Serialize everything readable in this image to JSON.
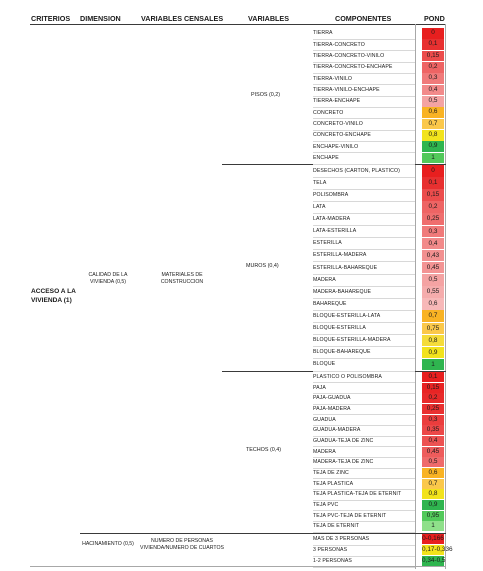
{
  "headers": {
    "criterios": "CRITERIOS",
    "dimension": "DIMENSION",
    "variables_censales": "VARIABLES CENSALES",
    "variables": "VARIABLES",
    "componentes": "COMPONENTES",
    "pond": "POND"
  },
  "criterio": "ACCESO A LA VIVIENDA (1)",
  "dimensiones": {
    "calidad": "CALIDAD DE LA VIVIENDA (0,5)",
    "hacinamiento": "HACINAMIENTO (0,5)"
  },
  "variables_censales": {
    "materiales": "MATERIALES DE CONSTRUCCION",
    "personas": "NUMERO DE PERSONAS VIVIENDA/NUMERO DE CUARTOS"
  },
  "variables": {
    "pisos": "PISOS (0,2)",
    "muros": "MUROS (0,4)",
    "techos": "TECHOS (0,4)"
  },
  "colors": {
    "red": "#e81f1f",
    "salmon": "#ef6b6b",
    "pink": "#f4a3a3",
    "orange": "#f9b324",
    "yellow": "#f2e31c",
    "green": "#2fb54f",
    "light_green": "#8fe08a"
  },
  "rows": [
    {
      "comp": "TIERRA",
      "pond": "0",
      "color": "#e81f1f"
    },
    {
      "comp": "TIERRA-CONCRETO",
      "pond": "0,1",
      "color": "#e83030"
    },
    {
      "comp": "TIERRA-CONCRETO-VINILO",
      "pond": "0,15",
      "color": "#ec4c4c"
    },
    {
      "comp": "TIERRA-CONCRETO-ENCHAPE",
      "pond": "0,2",
      "color": "#ee6464"
    },
    {
      "comp": "TIERRA-VINILO",
      "pond": "0,3",
      "color": "#f07a7a"
    },
    {
      "comp": "TIERRA-VINILO-ENCHAPE",
      "pond": "0,4",
      "color": "#f28a8a"
    },
    {
      "comp": "TIERRA-ENCHAPE",
      "pond": "0,5",
      "color": "#f4a3a3"
    },
    {
      "comp": "CONCRETO",
      "pond": "0,6",
      "color": "#f9b324"
    },
    {
      "comp": "CONCRETO-VINILO",
      "pond": "0,7",
      "color": "#fbc84a"
    },
    {
      "comp": "CONCRETO-ENCHAPE",
      "pond": "0,8",
      "color": "#f2e31c"
    },
    {
      "comp": "ENCHAPE-VINILO",
      "pond": "0,9",
      "color": "#2fb54f"
    },
    {
      "comp": "ENCHAPE",
      "pond": "1",
      "color": "#52c95a"
    },
    {
      "comp": "DESECHOS (CARTON, PLASTICO)",
      "pond": "0",
      "color": "#e81f1f"
    },
    {
      "comp": "TELA",
      "pond": "0,1",
      "color": "#e83030"
    },
    {
      "comp": "POLISOMBRA",
      "pond": "0,15",
      "color": "#ec4c4c"
    },
    {
      "comp": "LATA",
      "pond": "0,2",
      "color": "#ee6464"
    },
    {
      "comp": "LATA-MADERA",
      "pond": "0,25",
      "color": "#ef6e6e"
    },
    {
      "comp": "LATA-ESTERILLA",
      "pond": "0,3",
      "color": "#f07a7a"
    },
    {
      "comp": "ESTERILLA",
      "pond": "0,4",
      "color": "#f28a8a"
    },
    {
      "comp": "ESTERILLA-MADERA",
      "pond": "0,43",
      "color": "#f29090"
    },
    {
      "comp": "ESTERILLA-BAHAREQUE",
      "pond": "0,45",
      "color": "#f39494"
    },
    {
      "comp": "MADERA",
      "pond": "0,5",
      "color": "#f4a3a3"
    },
    {
      "comp": "MADERA-BAHAREQUE",
      "pond": "0,55",
      "color": "#f5acac"
    },
    {
      "comp": "BAHAREQUE",
      "pond": "0,6",
      "color": "#f7b8b8"
    },
    {
      "comp": "BLOQUE-ESTERILLA-LATA",
      "pond": "0,7",
      "color": "#f9b324"
    },
    {
      "comp": "BLOQUE-ESTERILLA",
      "pond": "0,75",
      "color": "#fbc84a"
    },
    {
      "comp": "BLOQUE-ESTERILLA-MADERA",
      "pond": "0,8",
      "color": "#f5dc3a"
    },
    {
      "comp": "BLOQUE-BAHAREQUE",
      "pond": "0,9",
      "color": "#f2e31c"
    },
    {
      "comp": "BLOQUE",
      "pond": "1",
      "color": "#2fb54f"
    },
    {
      "comp": "PLASTICO O POLISOMBRA",
      "pond": "0,1",
      "color": "#e81f1f"
    },
    {
      "comp": "PAJA",
      "pond": "0,15",
      "color": "#e82424"
    },
    {
      "comp": "PAJA-GUADUA",
      "pond": "0,2",
      "color": "#e82a2a"
    },
    {
      "comp": "PAJA-MADERA",
      "pond": "0,25",
      "color": "#e93030"
    },
    {
      "comp": "GUADUA",
      "pond": "0,3",
      "color": "#eb3d3d"
    },
    {
      "comp": "GUADUA-MADERA",
      "pond": "0,35",
      "color": "#ec4848"
    },
    {
      "comp": "GUADUA-TEJA DE ZINC",
      "pond": "0,4",
      "color": "#ed5252"
    },
    {
      "comp": "MADERA",
      "pond": "0,45",
      "color": "#ee5c5c"
    },
    {
      "comp": "MADERA-TEJA DE ZINC",
      "pond": "0,5",
      "color": "#ef6b6b"
    },
    {
      "comp": "TEJA DE ZINC",
      "pond": "0,6",
      "color": "#f9b324"
    },
    {
      "comp": "TEJA PLASTICA",
      "pond": "0,7",
      "color": "#fbc84a"
    },
    {
      "comp": "TEJA PLASTICA-TEJA DE ETERNIT",
      "pond": "0,8",
      "color": "#f2e31c"
    },
    {
      "comp": "TEJA PVC",
      "pond": "0,9",
      "color": "#2fb54f"
    },
    {
      "comp": "TEJA PVC-TEJA DE ETERNIT",
      "pond": "0,95",
      "color": "#52c95a"
    },
    {
      "comp": "TEJA DE ETERNIT",
      "pond": "1",
      "color": "#8fe08a"
    },
    {
      "comp": "MAS DE 3 PERSONAS",
      "pond": "0-0,166",
      "color": "#e81f1f"
    },
    {
      "comp": "3 PERSONAS",
      "pond": "0,17-0,336",
      "color": "#f2e31c"
    },
    {
      "comp": "1-2 PERSONAS",
      "pond": "0,34-0,5",
      "color": "#2fb54f"
    }
  ]
}
